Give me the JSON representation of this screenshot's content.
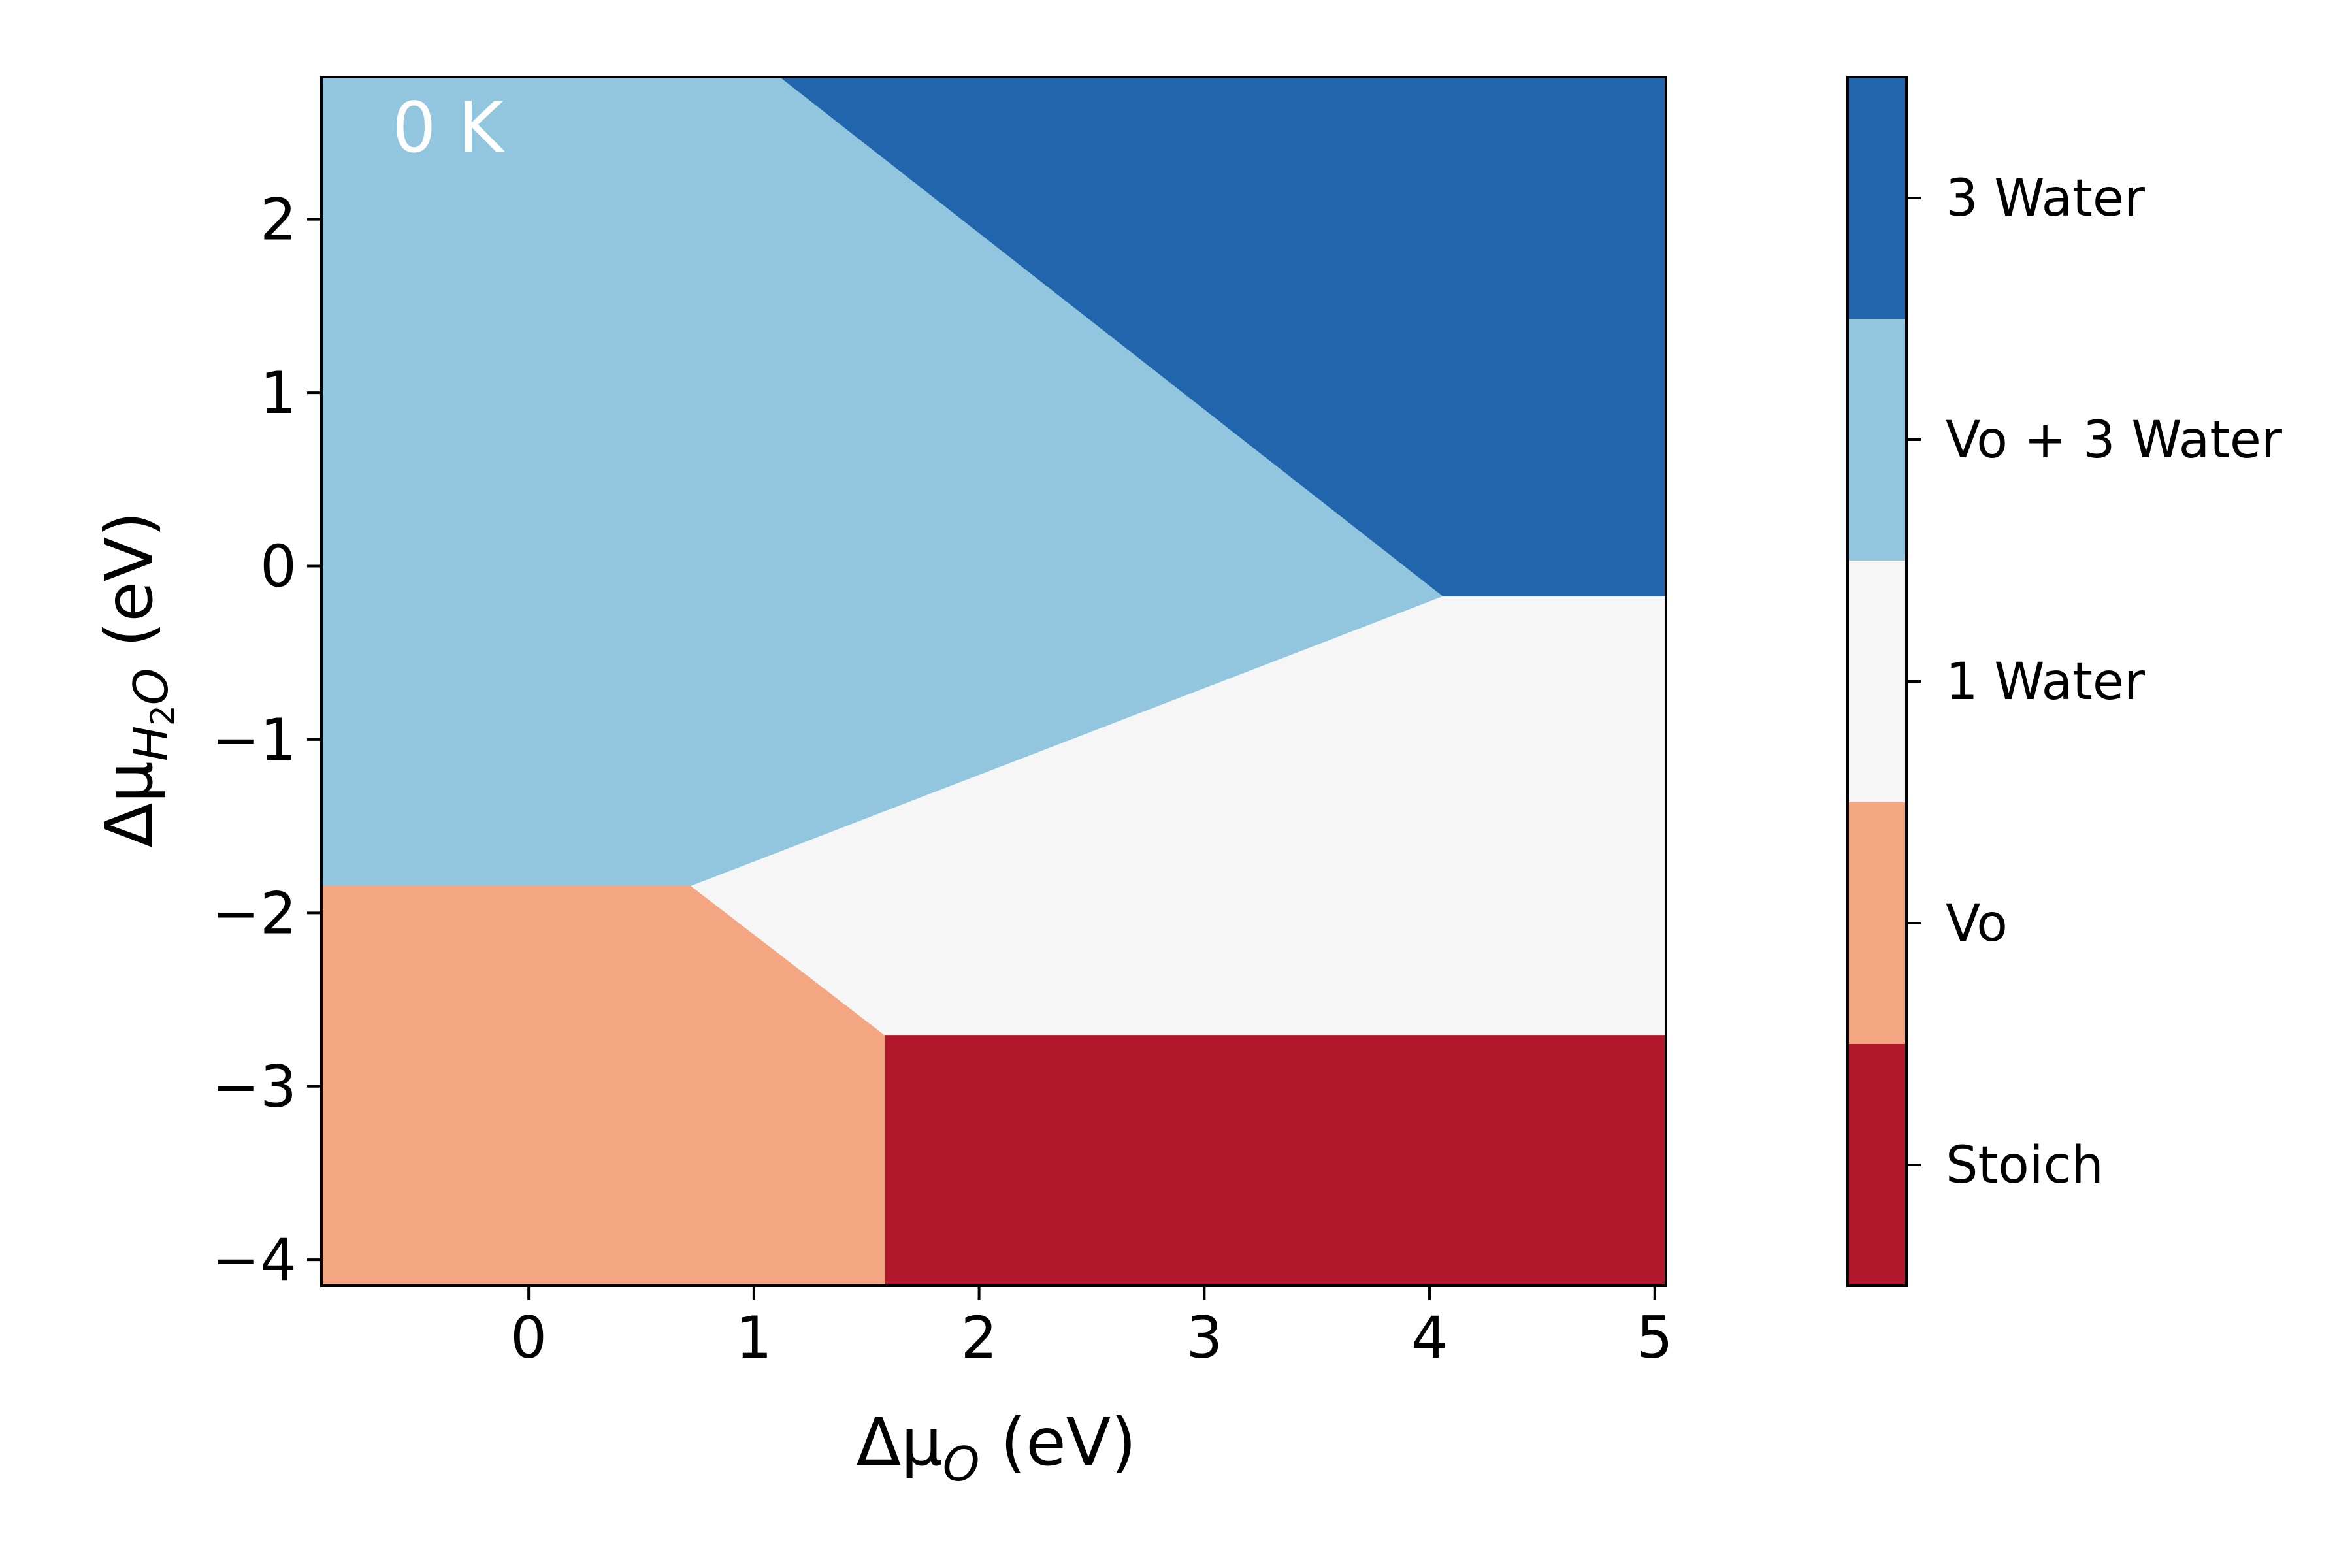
{
  "chart_data": {
    "type": "heatmap",
    "annotation": "0 K",
    "xlabel": "Δμ",
    "xlabel_sub": "O",
    "xlabel_unit": " (eV)",
    "ylabel": "Δμ",
    "ylabel_sub": "H",
    "ylabel_sub2": "2",
    "ylabel_sub3": "O",
    "ylabel_unit": " (eV)",
    "xlim": [
      -0.92,
      5.05
    ],
    "ylim": [
      -4.15,
      2.82
    ],
    "x_ticks": [
      {
        "value": 0,
        "label": "0"
      },
      {
        "value": 1,
        "label": "1"
      },
      {
        "value": 2,
        "label": "2"
      },
      {
        "value": 3,
        "label": "3"
      },
      {
        "value": 4,
        "label": "4"
      },
      {
        "value": 5,
        "label": "5"
      }
    ],
    "y_ticks": [
      {
        "value": 2,
        "label": "2"
      },
      {
        "value": 1,
        "label": "1"
      },
      {
        "value": 0,
        "label": "0"
      },
      {
        "value": -1,
        "label": "−1"
      },
      {
        "value": -2,
        "label": "−2"
      },
      {
        "value": -3,
        "label": "−3"
      },
      {
        "value": -4,
        "label": "−4"
      }
    ],
    "regions": [
      {
        "name": "Stoich",
        "color": "#b2182b",
        "polygon": [
          [
            1.58,
            -4.15
          ],
          [
            5.05,
            -4.15
          ],
          [
            5.05,
            -2.7
          ],
          [
            1.58,
            -2.7
          ]
        ]
      },
      {
        "name": "Vo",
        "color": "#f4a582",
        "polygon": [
          [
            -0.92,
            -4.15
          ],
          [
            1.58,
            -4.15
          ],
          [
            1.58,
            -2.7
          ],
          [
            0.72,
            -1.84
          ],
          [
            -0.92,
            -1.84
          ]
        ]
      },
      {
        "name": "1 Water",
        "color": "#f5f6f5",
        "polygon": [
          [
            0.72,
            -1.84
          ],
          [
            4.06,
            -0.17
          ],
          [
            5.05,
            -0.17
          ],
          [
            5.05,
            -2.7
          ],
          [
            1.58,
            -2.7
          ]
        ]
      },
      {
        "name": "Vo + 3 Water",
        "color": "#92c5de",
        "polygon": [
          [
            -0.92,
            -1.84
          ],
          [
            0.72,
            -1.84
          ],
          [
            4.06,
            -0.17
          ],
          [
            1.12,
            2.82
          ],
          [
            -0.92,
            2.82
          ]
        ]
      },
      {
        "name": "3 Water",
        "color": "#2166ac",
        "polygon": [
          [
            1.12,
            2.82
          ],
          [
            5.05,
            2.82
          ],
          [
            5.05,
            -0.17
          ],
          [
            4.06,
            -0.17
          ]
        ]
      }
    ],
    "colorbar": {
      "labels": [
        "3 Water",
        "Vo + 3 Water",
        "1 Water",
        "Vo",
        "Stoich"
      ],
      "colors": [
        "#2166ac",
        "#92c5de",
        "#f5f6f5",
        "#f4a582",
        "#b2182b"
      ]
    }
  }
}
